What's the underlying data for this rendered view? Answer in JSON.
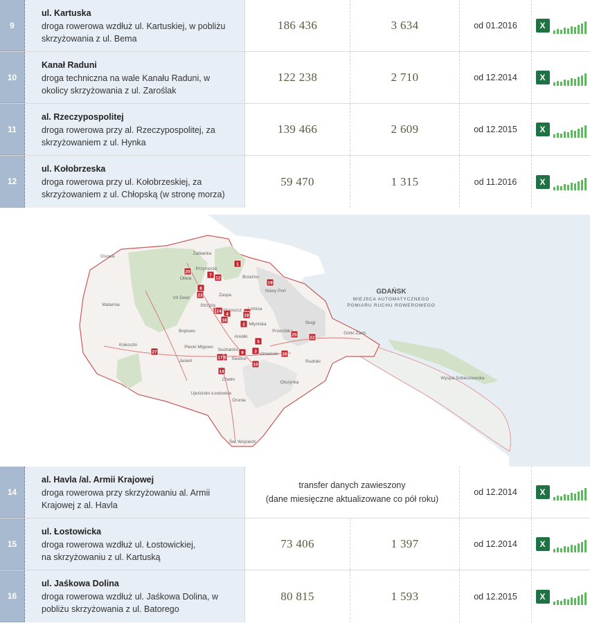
{
  "top_rows": [
    {
      "num": "9",
      "title": "ul. Kartuska",
      "line1": "droga rowerowa wzdłuż ul. Kartuskiej, w pobliżu",
      "line2": "skrzyżowania z ul. Bema",
      "value1": "186 436",
      "value2": "3 634",
      "date": "od 01.2016"
    },
    {
      "num": "10",
      "title": "Kanał Raduni",
      "line1": "droga techniczna na wale Kanału Raduni, w",
      "line2": "okolicy skrzyżowania z ul. Zaroślak",
      "value1": "122 238",
      "value2": "2 710",
      "date": "od 12.2014"
    },
    {
      "num": "11",
      "title": "al. Rzeczypospolitej",
      "line1": "droga rowerowa przy al. Rzeczypospolitej, za",
      "line2": "skrzyżowaniem z ul. Hynka",
      "value1": "139 466",
      "value2": "2 609",
      "date": "od 12.2015"
    },
    {
      "num": "12",
      "title": "ul. Kołobrzeska",
      "line1": "droga rowerowa przy ul. Kołobrzeskiej, za",
      "line2": "skrzyżowaniem z ul. Chłopską (w stronę morza)",
      "value1": "59 470",
      "value2": "1 315",
      "date": "od 11.2016"
    }
  ],
  "map": {
    "title": "GDAŃSK",
    "subtitle1": "MIEJSCA AUTOMATYCZNEGO",
    "subtitle2": "POMIARU RUCHU ROWEROWEGO",
    "districts": [
      "Osowa",
      "Żabianka",
      "Przymorze",
      "Oliwa",
      "Brzeźno",
      "Nowy Port",
      "VII Dwór",
      "Zaspa",
      "Strzyża",
      "Wrzeszcz",
      "Letnica",
      "Matarnia",
      "Brętowo",
      "Młyniska",
      "Aniołki",
      "Przeróbka",
      "Stogi",
      "Górki Zach.",
      "Kokoszki",
      "Piecki Migowo",
      "Suchanino",
      "Siedlce",
      "Śródmieście",
      "Jasień",
      "Chełm",
      "Rudniki",
      "Olszynka",
      "Ujeścisko Łostowice",
      "Orunia",
      "Św. Wojciech",
      "Wyspa Sobieszewska"
    ],
    "markers": [
      "1",
      "2",
      "3",
      "4",
      "5",
      "7",
      "8",
      "9",
      "10",
      "11",
      "12",
      "14",
      "15",
      "16",
      "17",
      "18",
      "19",
      "20",
      "21",
      "22",
      "23",
      "24",
      "25",
      "26",
      "27"
    ]
  },
  "bottom_rows": [
    {
      "num": "14",
      "title": "al. Havla /al. Armii Krajowej",
      "line1": "droga rowerowa przy skrzyżowaniu al. Armii",
      "line2": "Krajowej z al. Havla",
      "merged1": "transfer danych zawieszony",
      "merged2": "(dane miesięczne aktualizowane co pół roku)",
      "date": "od 12.2014"
    },
    {
      "num": "15",
      "title": "ul. Łostowicka",
      "line1": "droga rowerowa wzdłuż ul. Łostowickiej,",
      "line2": "na skrzyżowaniu z ul. Kartuską",
      "value1": "73 406",
      "value2": "1 397",
      "date": "od 12.2014"
    },
    {
      "num": "16",
      "title": "ul. Jaśkowa Dolina",
      "line1": "droga rowerowa wzdłuż ul. Jaśkowa Dolina,  w",
      "line2": "pobliżu skrzyżowania z ul. Batorego",
      "value1": "80 815",
      "value2": "1 593",
      "date": "od 12.2015"
    }
  ],
  "xls_icon": {
    "name": "excel-chart-icon",
    "letter": "X",
    "color": "#1f7244",
    "bar_color": "#5cb85c"
  }
}
